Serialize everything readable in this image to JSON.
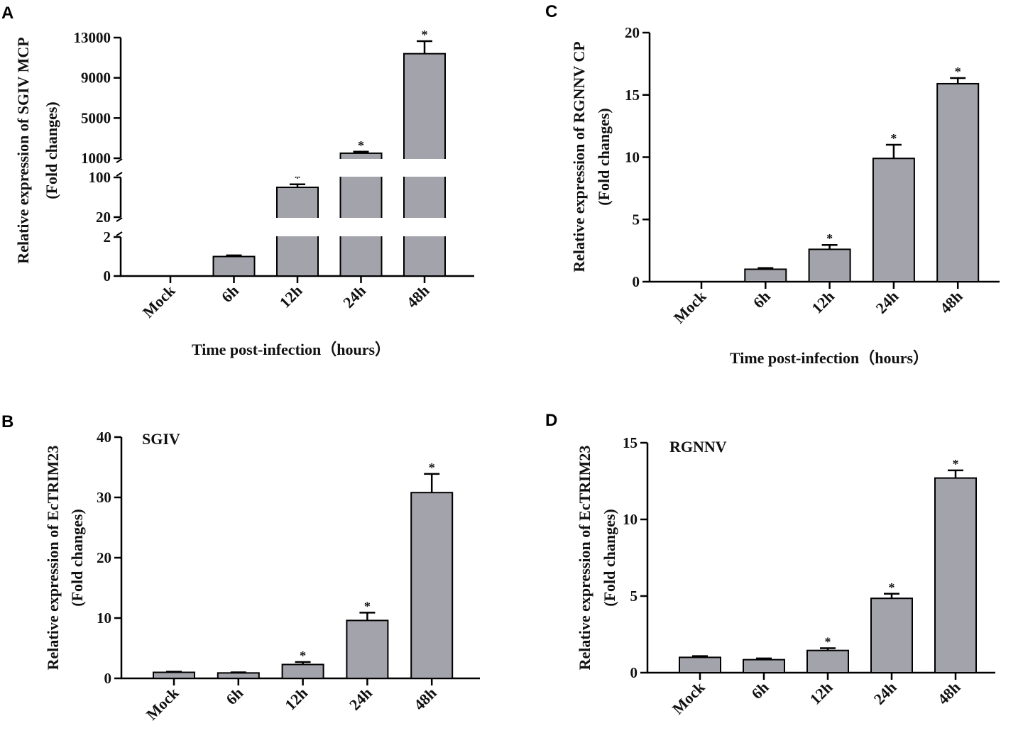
{
  "figure": {
    "panels": [
      "A",
      "B",
      "C",
      "D"
    ]
  },
  "chart_data": [
    {
      "panel": "A",
      "type": "bar",
      "title": "",
      "categories": [
        "Mock",
        "6h",
        "12h",
        "24h",
        "48h"
      ],
      "values": [
        0,
        1.0,
        80,
        1500,
        11400
      ],
      "errors": [
        0,
        0.06,
        6,
        150,
        1250
      ],
      "significance": [
        "",
        "",
        "*",
        "*",
        "*"
      ],
      "ylabel_line1": "Relative expression of SGIV MCP",
      "ylabel_line2": "(Fold changes)",
      "xlabel": "Time post-infection（hours）",
      "broken_axis": true,
      "segments": [
        {
          "range": [
            0,
            2
          ],
          "ticks": [
            0,
            2
          ]
        },
        {
          "range": [
            20,
            100
          ],
          "ticks": [
            20,
            100
          ]
        },
        {
          "range": [
            1000,
            13000
          ],
          "ticks": [
            1000,
            5000,
            9000,
            13000
          ]
        }
      ]
    },
    {
      "panel": "B",
      "type": "bar",
      "title": "SGIV",
      "categories": [
        "Mock",
        "6h",
        "12h",
        "24h",
        "48h"
      ],
      "values": [
        1.0,
        0.9,
        2.3,
        9.6,
        30.8
      ],
      "errors": [
        0.1,
        0.1,
        0.4,
        1.3,
        3.1
      ],
      "significance": [
        "",
        "",
        "*",
        "*",
        "*"
      ],
      "ylabel_line1": "Relative expression of EcTRIM23",
      "ylabel_line2": "(Fold changes)",
      "xlabel": "",
      "ylim": [
        0,
        40
      ],
      "yticks": [
        0,
        10,
        20,
        30,
        40
      ]
    },
    {
      "panel": "C",
      "type": "bar",
      "title": "",
      "categories": [
        "Mock",
        "6h",
        "12h",
        "24h",
        "48h"
      ],
      "values": [
        0,
        1.0,
        2.6,
        9.9,
        15.9
      ],
      "errors": [
        0,
        0.1,
        0.35,
        1.1,
        0.45
      ],
      "significance": [
        "",
        "",
        "*",
        "*",
        "*"
      ],
      "ylabel_line1": "Relative expression of RGNNV CP",
      "ylabel_line2": "(Fold changes)",
      "xlabel": "Time post-infection（hours）",
      "ylim": [
        0,
        20
      ],
      "yticks": [
        0,
        5,
        10,
        15,
        20
      ]
    },
    {
      "panel": "D",
      "type": "bar",
      "title": "RGNNV",
      "categories": [
        "Mock",
        "6h",
        "12h",
        "24h",
        "48h"
      ],
      "values": [
        1.0,
        0.85,
        1.45,
        4.85,
        12.7
      ],
      "errors": [
        0.08,
        0.08,
        0.15,
        0.3,
        0.5
      ],
      "significance": [
        "",
        "",
        "*",
        "*",
        "*"
      ],
      "ylabel_line1": "Relative expression of EcTRIM23",
      "ylabel_line2": "(Fold changes)",
      "xlabel": "",
      "ylim": [
        0,
        15
      ],
      "yticks": [
        0,
        5,
        10,
        15
      ]
    }
  ],
  "colors": {
    "bar_fill": "#a3a3ab",
    "stroke": "#000000",
    "text": "#111111"
  }
}
